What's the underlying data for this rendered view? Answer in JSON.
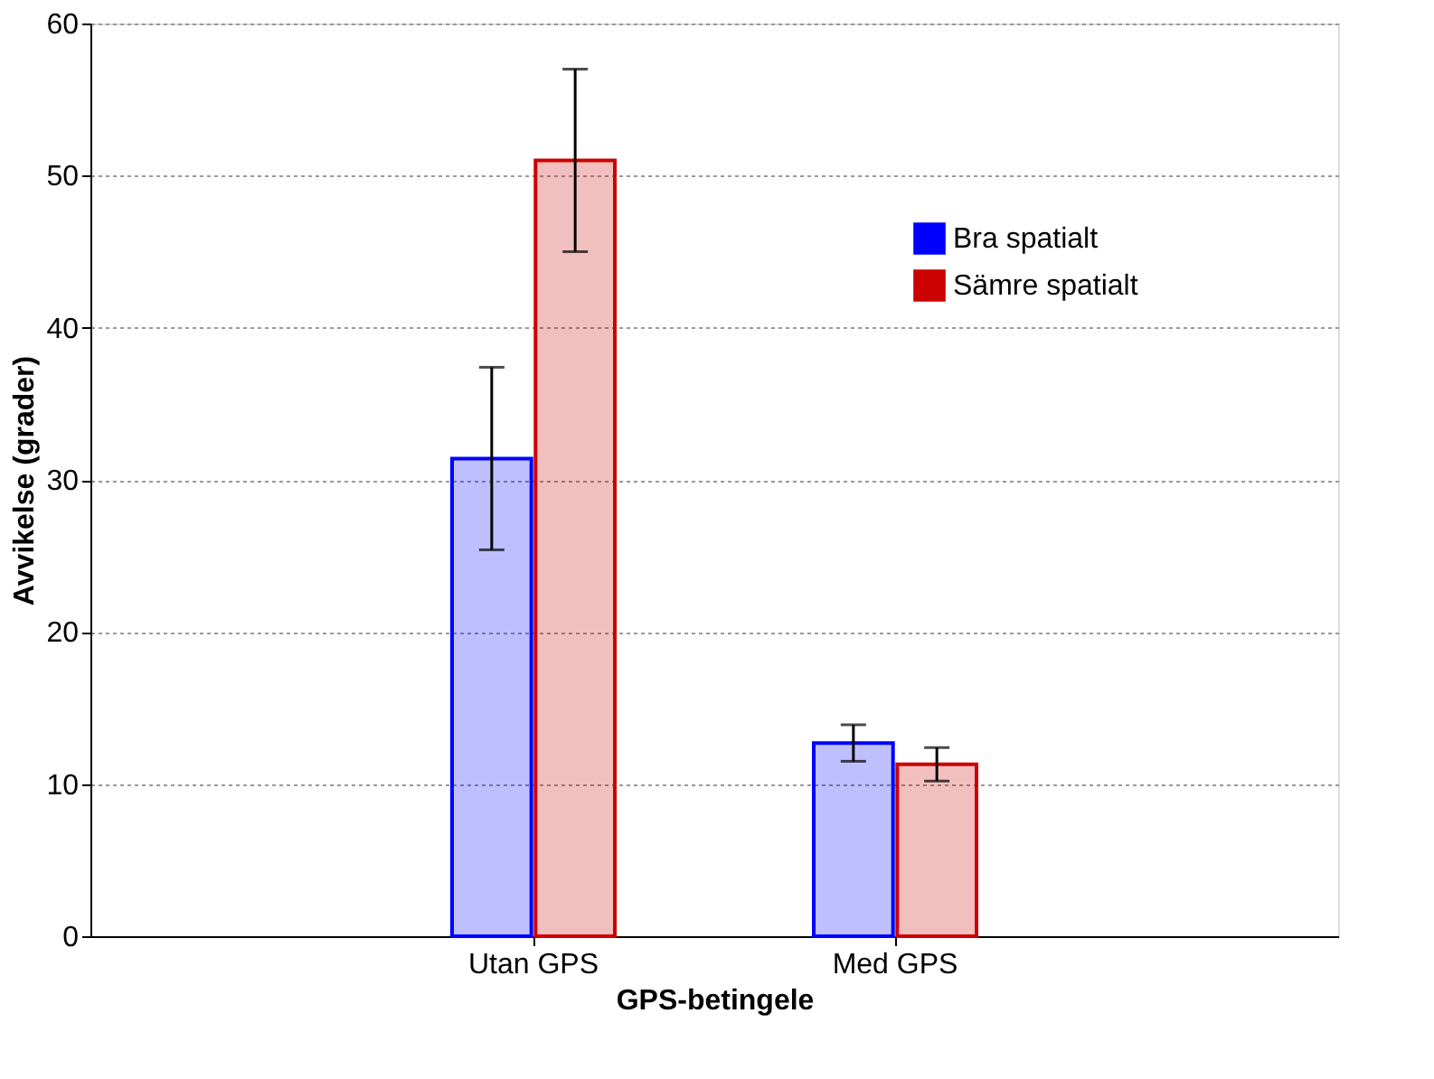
{
  "chart_data": {
    "type": "bar",
    "xlabel": "GPS-betingele",
    "ylabel": "Avvikelse (grader)",
    "categories": [
      "Utan GPS",
      "Med GPS"
    ],
    "series": [
      {
        "name": "Bra spatialt",
        "color": "#0000ff",
        "values": [
          31.4,
          12.7
        ],
        "errors": [
          6.0,
          1.2
        ]
      },
      {
        "name": "Sämre spatialt",
        "color": "#cc0000",
        "values": [
          51.0,
          11.3
        ],
        "errors": [
          6.0,
          1.1
        ]
      }
    ],
    "ylim": [
      0,
      60
    ],
    "yticks": [
      0,
      10,
      20,
      30,
      40,
      50,
      60
    ],
    "grid": "y",
    "legend": "top right"
  }
}
